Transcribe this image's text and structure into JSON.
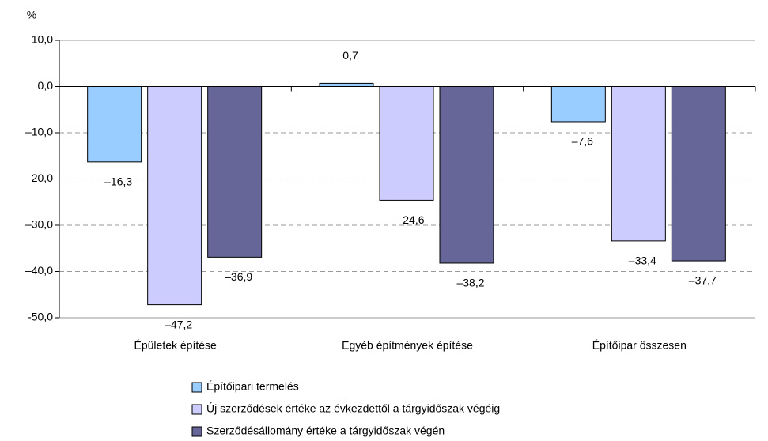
{
  "chart_data": {
    "type": "bar",
    "y_axis_label": "%",
    "categories": [
      "Épületek építése",
      "Egyéb építmények építése",
      "Építőipar összesen"
    ],
    "series": [
      {
        "name": "Építőipari termelés",
        "color": "#99ccff",
        "values": [
          -16.3,
          0.7,
          -7.6
        ],
        "value_labels": [
          "–16,3",
          "0,7",
          "–7,6"
        ]
      },
      {
        "name": "Új szerződések értéke az évkezdettől a tárgyidőszak végéig",
        "color": "#ccccff",
        "values": [
          -47.2,
          -24.6,
          -33.4
        ],
        "value_labels": [
          "–47,2",
          "–24,6",
          "–33,4"
        ]
      },
      {
        "name": "Szerződésállomány értéke a tárgyidőszak végén",
        "color": "#666699",
        "values": [
          -36.9,
          -38.2,
          -37.7
        ],
        "value_labels": [
          "–36,9",
          "–38,2",
          "–37,7"
        ]
      }
    ],
    "ylim": [
      -50,
      10
    ],
    "yticks": [
      {
        "value": 10,
        "label": "10,0"
      },
      {
        "value": 0,
        "label": "0,0"
      },
      {
        "value": -10,
        "label": "–10,0"
      },
      {
        "value": -20,
        "label": "–20,0"
      },
      {
        "value": -30,
        "label": "–30,0"
      },
      {
        "value": -40,
        "label": "–40,0"
      },
      {
        "value": -50,
        "label": "-50,0"
      }
    ],
    "grid": true
  }
}
